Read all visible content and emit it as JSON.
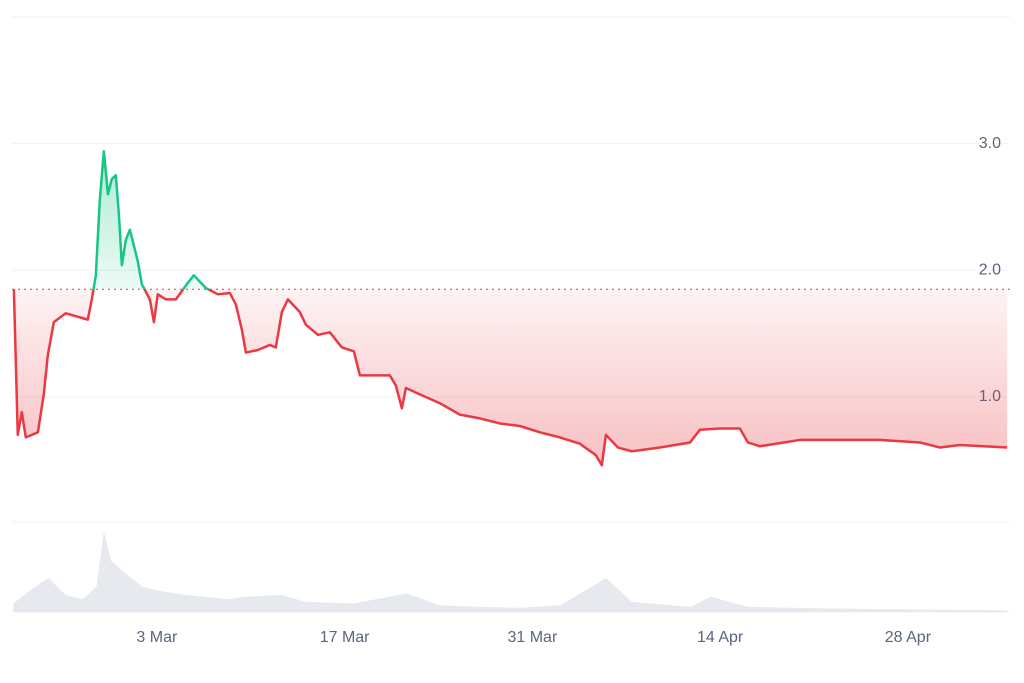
{
  "chart_data": {
    "type": "line",
    "x": [
      0.34,
      0.63,
      0.93,
      1.23,
      2.13,
      2.57,
      2.87,
      3.32,
      4.21,
      5.85,
      6.15,
      6.45,
      6.75,
      7.05,
      7.35,
      7.64,
      7.94,
      8.17,
      8.39,
      8.69,
      8.99,
      9.58,
      9.88,
      10.48,
      10.78,
      11.07,
      11.67,
      12.42,
      13.31,
      13.76,
      14.65,
      15.55,
      16.44,
      16.89,
      17.34,
      17.64,
      18.53,
      19.43,
      19.87,
      20.32,
      20.77,
      21.66,
      22.11,
      23.01,
      23.9,
      24.8,
      25.69,
      26.14,
      27.03,
      28.37,
      28.82,
      29.27,
      29.57,
      30.61,
      32.1,
      33.59,
      35.09,
      36.58,
      38.07,
      39.56,
      41.05,
      42.54,
      43.73,
      44.18,
      44.48,
      45.38,
      46.42,
      48.51,
      50.75,
      51.49,
      52.98,
      54.47,
      55.07,
      55.97,
      58.95,
      61.93,
      64.92,
      67.9,
      69.39,
      70.88,
      74.4
    ],
    "values": [
      1.85,
      0.7,
      0.88,
      0.68,
      0.72,
      1.02,
      1.33,
      1.59,
      1.66,
      1.61,
      1.77,
      1.96,
      2.56,
      2.94,
      2.6,
      2.72,
      2.75,
      2.44,
      2.04,
      2.24,
      2.32,
      2.07,
      1.89,
      1.77,
      1.59,
      1.81,
      1.77,
      1.77,
      1.9,
      1.96,
      1.86,
      1.81,
      1.82,
      1.73,
      1.53,
      1.35,
      1.37,
      1.41,
      1.39,
      1.67,
      1.77,
      1.67,
      1.57,
      1.49,
      1.51,
      1.39,
      1.36,
      1.17,
      1.17,
      1.17,
      1.09,
      0.91,
      1.07,
      1.02,
      0.95,
      0.86,
      0.83,
      0.79,
      0.77,
      0.72,
      0.68,
      0.63,
      0.54,
      0.46,
      0.7,
      0.6,
      0.57,
      0.6,
      0.64,
      0.74,
      0.75,
      0.75,
      0.64,
      0.61,
      0.66,
      0.66,
      0.66,
      0.64,
      0.6,
      0.62,
      0.6
    ],
    "baseline": 1.85,
    "up_color": "#16c784",
    "down_color": "#ea3943",
    "xlim": [
      0.2,
      74.5
    ],
    "xticks": [
      {
        "value": 11,
        "label": "3 Mar"
      },
      {
        "value": 25,
        "label": "17 Mar"
      },
      {
        "value": 39,
        "label": "31 Mar"
      },
      {
        "value": 53,
        "label": "14 Apr"
      },
      {
        "value": 67,
        "label": "28 Apr"
      }
    ],
    "ylim": [
      0,
      4
    ],
    "yticks": [
      {
        "value": 1,
        "label": "1.0"
      },
      {
        "value": 2,
        "label": "2.0"
      },
      {
        "value": 3,
        "label": "3.0"
      }
    ],
    "grid": true,
    "volume": {
      "x": [
        0.3,
        1.5,
        2.9,
        4.2,
        5.5,
        6.5,
        7.05,
        7.6,
        8.7,
        9.9,
        11.1,
        13.3,
        16.4,
        17.6,
        20.3,
        22.1,
        25.7,
        29.6,
        32.1,
        35.1,
        38.1,
        41.1,
        44.5,
        46.4,
        50.8,
        52.3,
        55.1,
        61.9,
        67.9,
        74.4
      ],
      "values": [
        10,
        25,
        40,
        20,
        15,
        30,
        95,
        60,
        45,
        30,
        25,
        20,
        15,
        18,
        20,
        12,
        10,
        22,
        8,
        6,
        5,
        8,
        40,
        12,
        6,
        18,
        6,
        4,
        3,
        2
      ],
      "ylim": [
        0,
        100
      ],
      "color": "#e6e9ee"
    }
  }
}
